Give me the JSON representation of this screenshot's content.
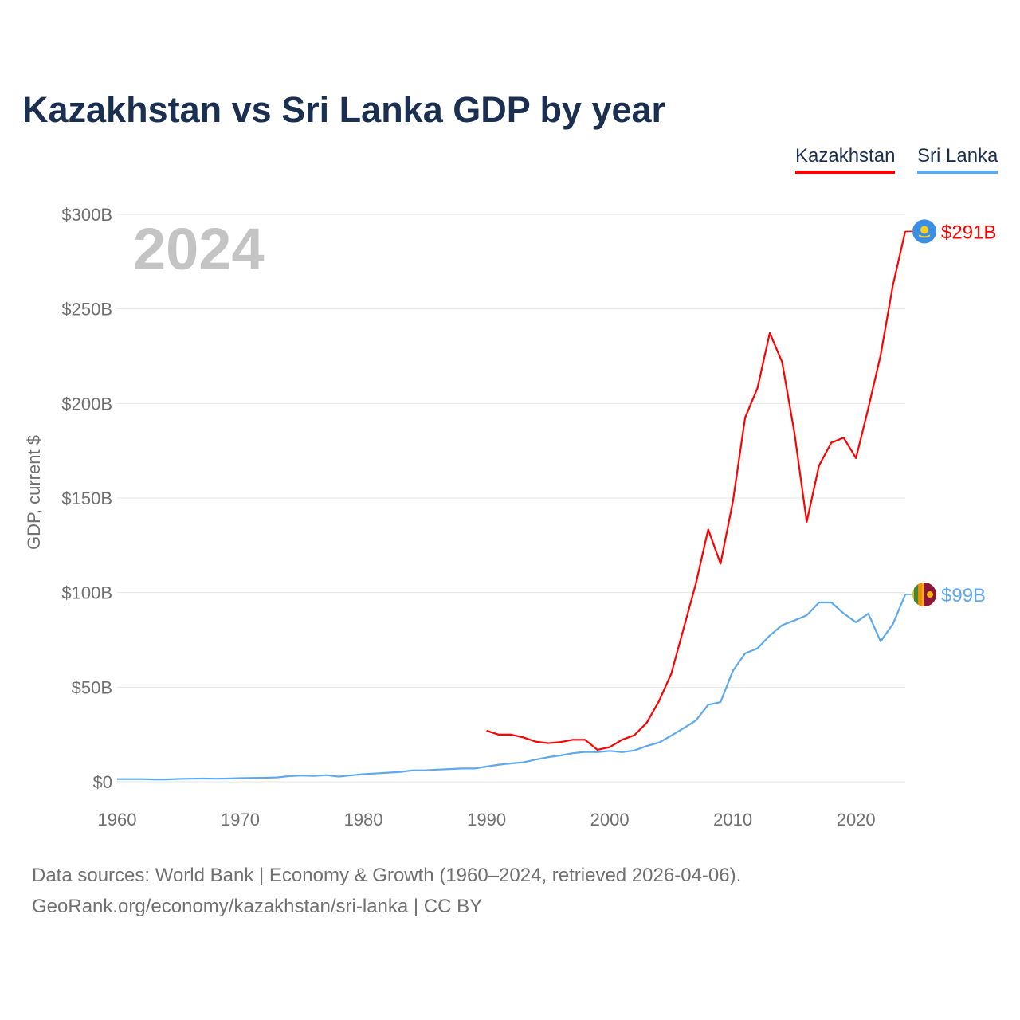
{
  "title": "Kazakhstan vs Sri Lanka GDP by year",
  "year_watermark": "2024",
  "footer": {
    "line1": "Data sources: World Bank | Economy & Growth (1960–2024, retrieved 2026-04-06).",
    "line2": "GeoRank.org/economy/kazakhstan/sri-lanka | CC BY"
  },
  "chart_data": {
    "type": "line",
    "title": "Kazakhstan vs Sri Lanka GDP by year",
    "xlabel": "",
    "ylabel": "GDP, current $",
    "xlim": [
      1960,
      2024
    ],
    "ylim": [
      0,
      300
    ],
    "x_ticks": [
      1960,
      1970,
      1980,
      1990,
      2000,
      2010,
      2020
    ],
    "x_tick_labels": [
      "1960",
      "1970",
      "1980",
      "1990",
      "2000",
      "2010",
      "2020"
    ],
    "y_ticks": [
      0,
      50,
      100,
      150,
      200,
      250,
      300
    ],
    "y_tick_labels": [
      "$0",
      "$50B",
      "$100B",
      "$150B",
      "$200B",
      "$250B",
      "$300B"
    ],
    "grid": true,
    "legend_position": "top-right",
    "series": [
      {
        "name": "Kazakhstan",
        "color": "#ff0000",
        "end_label": "$291B",
        "flag": "kazakhstan-flag",
        "x": [
          1990,
          1991,
          1992,
          1993,
          1994,
          1995,
          1996,
          1997,
          1998,
          1999,
          2000,
          2001,
          2002,
          2003,
          2004,
          2005,
          2006,
          2007,
          2008,
          2009,
          2010,
          2011,
          2012,
          2013,
          2014,
          2015,
          2016,
          2017,
          2018,
          2019,
          2020,
          2021,
          2022,
          2023,
          2024
        ],
        "values": [
          27.0,
          24.9,
          24.9,
          23.4,
          21.2,
          20.4,
          21.0,
          22.2,
          22.2,
          16.9,
          18.3,
          22.2,
          24.6,
          31.1,
          42.6,
          57.1,
          81.0,
          104.8,
          133.4,
          115.3,
          148.0,
          192.6,
          208.1,
          237.3,
          221.9,
          184.6,
          137.4,
          167.2,
          179.3,
          181.9,
          171.1,
          197.5,
          225.5,
          262.6,
          291.0
        ]
      },
      {
        "name": "Sri Lanka",
        "color": "#5ea9ee",
        "end_label": "$99B",
        "flag": "sri-lanka-flag",
        "x": [
          1960,
          1961,
          1962,
          1963,
          1964,
          1965,
          1966,
          1967,
          1968,
          1969,
          1970,
          1971,
          1972,
          1973,
          1974,
          1975,
          1976,
          1977,
          1978,
          1979,
          1980,
          1981,
          1982,
          1983,
          1984,
          1985,
          1986,
          1987,
          1988,
          1989,
          1990,
          1991,
          1992,
          1993,
          1994,
          1995,
          1996,
          1997,
          1998,
          1999,
          2000,
          2001,
          2002,
          2003,
          2004,
          2005,
          2006,
          2007,
          2008,
          2009,
          2010,
          2011,
          2012,
          2013,
          2014,
          2015,
          2016,
          2017,
          2018,
          2019,
          2020,
          2021,
          2022,
          2023,
          2024
        ],
        "values": [
          1.4,
          1.4,
          1.4,
          1.2,
          1.2,
          1.5,
          1.6,
          1.7,
          1.6,
          1.7,
          1.9,
          2.0,
          2.1,
          2.3,
          3.0,
          3.3,
          3.1,
          3.5,
          2.7,
          3.4,
          4.0,
          4.4,
          4.8,
          5.2,
          6.0,
          6.0,
          6.4,
          6.7,
          7.0,
          7.0,
          8.0,
          9.0,
          9.7,
          10.3,
          11.7,
          13.0,
          13.9,
          15.1,
          15.8,
          15.7,
          16.3,
          15.7,
          16.5,
          18.9,
          20.7,
          24.4,
          28.3,
          32.4,
          40.7,
          42.1,
          58.6,
          67.9,
          70.5,
          77.3,
          82.8,
          85.3,
          88.0,
          94.8,
          94.8,
          89.0,
          84.3,
          88.9,
          74.2,
          83.4,
          99.0
        ]
      }
    ]
  }
}
